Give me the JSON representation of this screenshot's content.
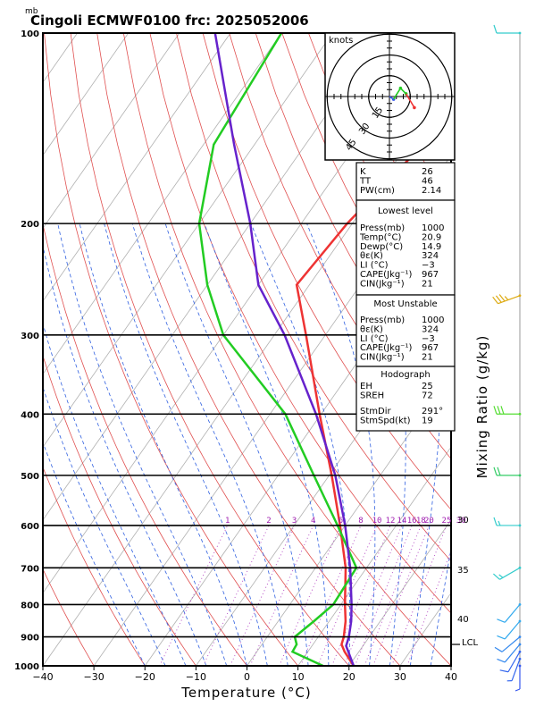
{
  "header": {
    "unit_mb": "mb",
    "title": "Cingoli ECMWF0100  frc: 2025052006"
  },
  "axes": {
    "xlabel": "Temperature (°C)",
    "ylabel_right": "Mixing Ratio (g/kg)",
    "x_ticks": [
      "−40",
      "−30",
      "−20",
      "−10",
      "0",
      "10",
      "20",
      "30",
      "40"
    ],
    "pressure_ticks": [
      "100",
      "200",
      "300",
      "400",
      "500",
      "600",
      "700",
      "800",
      "900",
      "1000"
    ],
    "lcl_label": "LCL"
  },
  "mixing_ratio_labels": [
    "1",
    "2",
    "3",
    "4",
    "6",
    "8",
    "10",
    "12",
    "14",
    "16",
    "18",
    "20",
    "25",
    "30"
  ],
  "theta_e_labels": [
    "30",
    "35",
    "40"
  ],
  "hodograph": {
    "unit": "knots",
    "ring_labels": [
      "15",
      "30",
      "45"
    ]
  },
  "indices": {
    "top": [
      {
        "label": "K",
        "value": "26"
      },
      {
        "label": "TT",
        "value": "46"
      },
      {
        "label": "PW(cm)",
        "value": "2.14"
      }
    ],
    "lowest_title": "Lowest level",
    "lowest": [
      {
        "label": "Press(mb)",
        "value": "1000"
      },
      {
        "label": "Temp(°C)",
        "value": "20.9"
      },
      {
        "label": "Dewp(°C)",
        "value": "14.9"
      },
      {
        "label": "θε(K)",
        "value": "324"
      },
      {
        "label": "LI (°C)",
        "value": "−3"
      },
      {
        "label": "CAPE(Jkg⁻¹)",
        "value": "967"
      },
      {
        "label": "CIN(Jkg⁻¹)",
        "value": "21"
      }
    ],
    "unstable_title": "Most Unstable",
    "unstable": [
      {
        "label": "Press(mb)",
        "value": "1000"
      },
      {
        "label": "θε(K)",
        "value": "324"
      },
      {
        "label": "LI (°C)",
        "value": "−3"
      },
      {
        "label": "CAPE(Jkg⁻¹)",
        "value": "967"
      },
      {
        "label": "CIN(Jkg⁻¹)",
        "value": "21"
      }
    ],
    "hodo_title": "Hodograph",
    "hodo": [
      {
        "label": "EH",
        "value": "25"
      },
      {
        "label": "SREH",
        "value": "72"
      },
      {
        "label": "StmDir",
        "value": "291°"
      },
      {
        "label": "StmSpd(kt)",
        "value": "19"
      }
    ]
  },
  "chart_data": {
    "type": "line",
    "title": "Cingoli ECMWF0100  frc: 2025052006",
    "xlabel": "Temperature (°C)",
    "ylabel": "mb",
    "xlim": [
      -40,
      40
    ],
    "ylim_pressure_mb": [
      1000,
      100
    ],
    "y_scale": "log",
    "series": [
      {
        "name": "Temperature",
        "color": "#ee3333",
        "points": [
          [
            1000,
            20.9
          ],
          [
            950,
            17.2
          ],
          [
            925,
            15.6
          ],
          [
            900,
            15.0
          ],
          [
            850,
            13.2
          ],
          [
            800,
            10.8
          ],
          [
            700,
            5.9
          ],
          [
            600,
            -1.0
          ],
          [
            500,
            -9.5
          ],
          [
            400,
            -20.3
          ],
          [
            300,
            -33.8
          ],
          [
            250,
            -42.5
          ],
          [
            200,
            -41.0
          ],
          [
            150,
            -37.0
          ],
          [
            100,
            -27.0
          ]
        ]
      },
      {
        "name": "Dewpoint",
        "color": "#22cc22",
        "points": [
          [
            1000,
            14.9
          ],
          [
            950,
            7.0
          ],
          [
            925,
            6.8
          ],
          [
            900,
            5.4
          ],
          [
            850,
            7.0
          ],
          [
            800,
            8.5
          ],
          [
            700,
            8.0
          ],
          [
            600,
            -1.5
          ],
          [
            500,
            -13.0
          ],
          [
            400,
            -27.0
          ],
          [
            300,
            -50.0
          ],
          [
            250,
            -60.0
          ],
          [
            200,
            -70.0
          ],
          [
            150,
            -78.0
          ],
          [
            100,
            -80.0
          ]
        ]
      },
      {
        "name": "Parcel",
        "color": "#6622cc",
        "points": [
          [
            1000,
            20.9
          ],
          [
            930,
            16.7
          ],
          [
            900,
            16.0
          ],
          [
            850,
            14.3
          ],
          [
            800,
            12.1
          ],
          [
            700,
            6.8
          ],
          [
            600,
            0.0
          ],
          [
            500,
            -8.8
          ],
          [
            400,
            -21.0
          ],
          [
            300,
            -38.0
          ],
          [
            250,
            -50.0
          ],
          [
            200,
            -60.0
          ],
          [
            150,
            -74.0
          ],
          [
            100,
            -93.0
          ]
        ]
      }
    ],
    "winds": [
      {
        "p": 100,
        "dir": 270,
        "kt": 10,
        "color": "#33cccc"
      },
      {
        "p": 260,
        "dir": 250,
        "kt": 35,
        "color": "#ddaa11"
      },
      {
        "p": 400,
        "dir": 270,
        "kt": 30,
        "color": "#55dd33"
      },
      {
        "p": 500,
        "dir": 270,
        "kt": 20,
        "color": "#33cc66"
      },
      {
        "p": 600,
        "dir": 270,
        "kt": 15,
        "color": "#33cccc"
      },
      {
        "p": 700,
        "dir": 240,
        "kt": 15,
        "color": "#33cccc"
      },
      {
        "p": 800,
        "dir": 220,
        "kt": 10,
        "color": "#33aaee"
      },
      {
        "p": 850,
        "dir": 220,
        "kt": 10,
        "color": "#33aaee"
      },
      {
        "p": 900,
        "dir": 230,
        "kt": 10,
        "color": "#3388ee"
      },
      {
        "p": 925,
        "dir": 220,
        "kt": 10,
        "color": "#3388ee"
      },
      {
        "p": 950,
        "dir": 210,
        "kt": 10,
        "color": "#3366ee"
      },
      {
        "p": 975,
        "dir": 200,
        "kt": 5,
        "color": "#3366ee"
      },
      {
        "p": 1000,
        "dir": 180,
        "kt": 5,
        "color": "#3355ee"
      }
    ],
    "lcl_pressure_mb": 925,
    "hodograph_points": [
      {
        "u": 3,
        "v": -2,
        "color": "#3355ee"
      },
      {
        "u": 8,
        "v": 6,
        "color": "#22cc22"
      },
      {
        "u": 12,
        "v": 2,
        "color": "#22cc22"
      },
      {
        "u": 18,
        "v": -8,
        "color": "#ee3333"
      }
    ]
  }
}
